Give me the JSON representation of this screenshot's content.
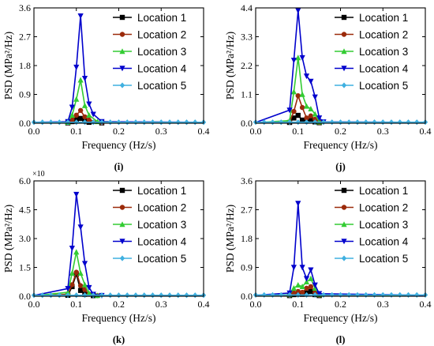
{
  "figure": {
    "legend_position": "top-right",
    "series_styles": [
      {
        "color": "#000000",
        "marker": "square"
      },
      {
        "color": "#9b2a0a",
        "marker": "circle"
      },
      {
        "color": "#33cc33",
        "marker": "triangle-up"
      },
      {
        "color": "#0000cc",
        "marker": "triangle-down"
      },
      {
        "color": "#3fb0e0",
        "marker": "diamond"
      }
    ]
  },
  "chart_data": [
    {
      "type": "line",
      "panel_label": "(i)",
      "xlabel": "Frequency (Hz/s)",
      "ylabel": "PSD (MPa²/Hz)",
      "xlim": [
        0,
        0.4
      ],
      "ylim": [
        0,
        3.6
      ],
      "x_ticks": [
        "0.0",
        "0.1",
        "0.2",
        "0.3",
        "0.4"
      ],
      "y_ticks": [
        "0.0",
        "0.9",
        "1.8",
        "2.7",
        "3.6"
      ],
      "y_multiplier_label": "",
      "series": [
        {
          "name": "Location 1",
          "points": [
            [
              0,
              0.01
            ],
            [
              0.08,
              0.01
            ],
            [
              0.09,
              0.05
            ],
            [
              0.1,
              0.12
            ],
            [
              0.11,
              0.15
            ],
            [
              0.12,
              0.08
            ],
            [
              0.13,
              0.03
            ],
            [
              0.16,
              0.01
            ],
            [
              0.4,
              0.01
            ]
          ]
        },
        {
          "name": "Location 2",
          "points": [
            [
              0,
              0.02
            ],
            [
              0.08,
              0.02
            ],
            [
              0.09,
              0.1
            ],
            [
              0.1,
              0.25
            ],
            [
              0.11,
              0.4
            ],
            [
              0.12,
              0.2
            ],
            [
              0.13,
              0.1
            ],
            [
              0.16,
              0.02
            ],
            [
              0.4,
              0.02
            ]
          ]
        },
        {
          "name": "Location 3",
          "points": [
            [
              0,
              0.02
            ],
            [
              0.08,
              0.03
            ],
            [
              0.09,
              0.25
            ],
            [
              0.1,
              0.75
            ],
            [
              0.11,
              1.35
            ],
            [
              0.12,
              0.55
            ],
            [
              0.13,
              0.25
            ],
            [
              0.15,
              0.05
            ],
            [
              0.4,
              0.02
            ]
          ]
        },
        {
          "name": "Location 4",
          "points": [
            [
              0,
              0.03
            ],
            [
              0.08,
              0.05
            ],
            [
              0.09,
              0.5
            ],
            [
              0.1,
              1.75
            ],
            [
              0.11,
              3.35
            ],
            [
              0.12,
              1.4
            ],
            [
              0.13,
              0.6
            ],
            [
              0.14,
              0.28
            ],
            [
              0.16,
              0.05
            ],
            [
              0.4,
              0.03
            ]
          ]
        },
        {
          "name": "Location 5",
          "points": [
            [
              0,
              0.03
            ],
            [
              0.4,
              0.03
            ]
          ]
        }
      ]
    },
    {
      "type": "line",
      "panel_label": "(j)",
      "xlabel": "Frequency (Hz/s)",
      "ylabel": "PSD (MPa²/Hz)",
      "xlim": [
        0,
        0.4
      ],
      "ylim": [
        0,
        4.4
      ],
      "x_ticks": [
        "0.0",
        "0.1",
        "0.2",
        "0.3",
        "0.4"
      ],
      "y_ticks": [
        "0.0",
        "1.1",
        "2.2",
        "3.3",
        "4.4"
      ],
      "y_multiplier_label": "",
      "series": [
        {
          "name": "Location 1",
          "points": [
            [
              0,
              0.02
            ],
            [
              0.08,
              0.03
            ],
            [
              0.09,
              0.2
            ],
            [
              0.1,
              0.3
            ],
            [
              0.11,
              0.12
            ],
            [
              0.12,
              0.08
            ],
            [
              0.13,
              0.1
            ],
            [
              0.14,
              0.05
            ],
            [
              0.15,
              0.02
            ],
            [
              0.4,
              0.02
            ]
          ]
        },
        {
          "name": "Location 2",
          "points": [
            [
              0,
              0.02
            ],
            [
              0.08,
              0.05
            ],
            [
              0.09,
              0.45
            ],
            [
              0.1,
              1.05
            ],
            [
              0.11,
              0.6
            ],
            [
              0.12,
              0.2
            ],
            [
              0.13,
              0.28
            ],
            [
              0.14,
              0.15
            ],
            [
              0.15,
              0.03
            ],
            [
              0.4,
              0.02
            ]
          ]
        },
        {
          "name": "Location 3",
          "points": [
            [
              0,
              0.02
            ],
            [
              0.08,
              0.1
            ],
            [
              0.09,
              1.2
            ],
            [
              0.1,
              2.5
            ],
            [
              0.11,
              1.1
            ],
            [
              0.12,
              0.65
            ],
            [
              0.13,
              0.55
            ],
            [
              0.14,
              0.35
            ],
            [
              0.15,
              0.05
            ],
            [
              0.4,
              0.02
            ]
          ]
        },
        {
          "name": "Location 4",
          "points": [
            [
              0,
              0.03
            ],
            [
              0.08,
              0.5
            ],
            [
              0.09,
              2.4
            ],
            [
              0.1,
              4.3
            ],
            [
              0.11,
              2.5
            ],
            [
              0.12,
              1.8
            ],
            [
              0.13,
              1.6
            ],
            [
              0.14,
              1.0
            ],
            [
              0.15,
              0.2
            ],
            [
              0.16,
              0.05
            ],
            [
              0.4,
              0.03
            ]
          ]
        },
        {
          "name": "Location 5",
          "points": [
            [
              0,
              0.04
            ],
            [
              0.4,
              0.04
            ]
          ]
        }
      ]
    },
    {
      "type": "line",
      "panel_label": "(k)",
      "xlabel": "Frequency (Hz/s)",
      "ylabel": "PSD (MPa²/Hz)",
      "xlim": [
        0,
        0.4
      ],
      "ylim": [
        0,
        6.0
      ],
      "x_ticks": [
        "0.0",
        "0.1",
        "0.2",
        "0.3",
        "0.4"
      ],
      "y_ticks": [
        "0.0",
        "1.5",
        "3.0",
        "4.5",
        "6.0"
      ],
      "y_multiplier_label": "×10",
      "series": [
        {
          "name": "Location 1",
          "points": [
            [
              0,
              0.02
            ],
            [
              0.08,
              0.05
            ],
            [
              0.09,
              0.5
            ],
            [
              0.1,
              1.15
            ],
            [
              0.11,
              0.3
            ],
            [
              0.12,
              0.1
            ],
            [
              0.14,
              0.03
            ],
            [
              0.4,
              0.02
            ]
          ]
        },
        {
          "name": "Location 2",
          "points": [
            [
              0,
              0.02
            ],
            [
              0.08,
              0.1
            ],
            [
              0.09,
              0.6
            ],
            [
              0.1,
              1.25
            ],
            [
              0.11,
              0.55
            ],
            [
              0.12,
              0.35
            ],
            [
              0.13,
              0.1
            ],
            [
              0.15,
              0.03
            ],
            [
              0.4,
              0.02
            ]
          ]
        },
        {
          "name": "Location 3",
          "points": [
            [
              0,
              0.03
            ],
            [
              0.08,
              0.2
            ],
            [
              0.09,
              1.2
            ],
            [
              0.1,
              2.3
            ],
            [
              0.11,
              1.2
            ],
            [
              0.12,
              0.6
            ],
            [
              0.13,
              0.15
            ],
            [
              0.15,
              0.04
            ],
            [
              0.4,
              0.03
            ]
          ]
        },
        {
          "name": "Location 4",
          "points": [
            [
              0,
              0.04
            ],
            [
              0.08,
              0.4
            ],
            [
              0.09,
              2.5
            ],
            [
              0.1,
              5.3
            ],
            [
              0.11,
              3.6
            ],
            [
              0.12,
              1.7
            ],
            [
              0.13,
              0.45
            ],
            [
              0.14,
              0.1
            ],
            [
              0.16,
              0.04
            ],
            [
              0.4,
              0.04
            ]
          ]
        },
        {
          "name": "Location 5",
          "points": [
            [
              0,
              0.05
            ],
            [
              0.4,
              0.05
            ]
          ]
        }
      ]
    },
    {
      "type": "line",
      "panel_label": "(l)",
      "xlabel": "Frequency (Hz/s)",
      "ylabel": "PSD (MPa²/Hz)",
      "xlim": [
        0,
        0.4
      ],
      "ylim": [
        0,
        3.6
      ],
      "x_ticks": [
        "0.0",
        "0.1",
        "0.2",
        "0.3",
        "0.4"
      ],
      "y_ticks": [
        "0.0",
        "0.9",
        "1.8",
        "2.7",
        "3.6"
      ],
      "y_multiplier_label": "",
      "series": [
        {
          "name": "Location 1",
          "points": [
            [
              0,
              0.01
            ],
            [
              0.08,
              0.02
            ],
            [
              0.09,
              0.05
            ],
            [
              0.1,
              0.08
            ],
            [
              0.11,
              0.06
            ],
            [
              0.12,
              0.1
            ],
            [
              0.13,
              0.15
            ],
            [
              0.14,
              0.05
            ],
            [
              0.15,
              0.02
            ],
            [
              0.4,
              0.01
            ]
          ]
        },
        {
          "name": "Location 2",
          "points": [
            [
              0,
              0.02
            ],
            [
              0.08,
              0.03
            ],
            [
              0.09,
              0.1
            ],
            [
              0.1,
              0.15
            ],
            [
              0.11,
              0.12
            ],
            [
              0.12,
              0.25
            ],
            [
              0.13,
              0.3
            ],
            [
              0.14,
              0.12
            ],
            [
              0.15,
              0.03
            ],
            [
              0.4,
              0.02
            ]
          ]
        },
        {
          "name": "Location 3",
          "points": [
            [
              0,
              0.02
            ],
            [
              0.08,
              0.05
            ],
            [
              0.09,
              0.25
            ],
            [
              0.1,
              0.35
            ],
            [
              0.11,
              0.3
            ],
            [
              0.12,
              0.45
            ],
            [
              0.13,
              0.55
            ],
            [
              0.14,
              0.25
            ],
            [
              0.15,
              0.05
            ],
            [
              0.4,
              0.02
            ]
          ]
        },
        {
          "name": "Location 4",
          "points": [
            [
              0,
              0.03
            ],
            [
              0.08,
              0.1
            ],
            [
              0.09,
              0.9
            ],
            [
              0.1,
              2.9
            ],
            [
              0.11,
              0.9
            ],
            [
              0.12,
              0.55
            ],
            [
              0.13,
              0.82
            ],
            [
              0.14,
              0.35
            ],
            [
              0.15,
              0.08
            ],
            [
              0.4,
              0.03
            ]
          ]
        },
        {
          "name": "Location 5",
          "points": [
            [
              0,
              0.04
            ],
            [
              0.4,
              0.04
            ]
          ]
        }
      ]
    }
  ]
}
